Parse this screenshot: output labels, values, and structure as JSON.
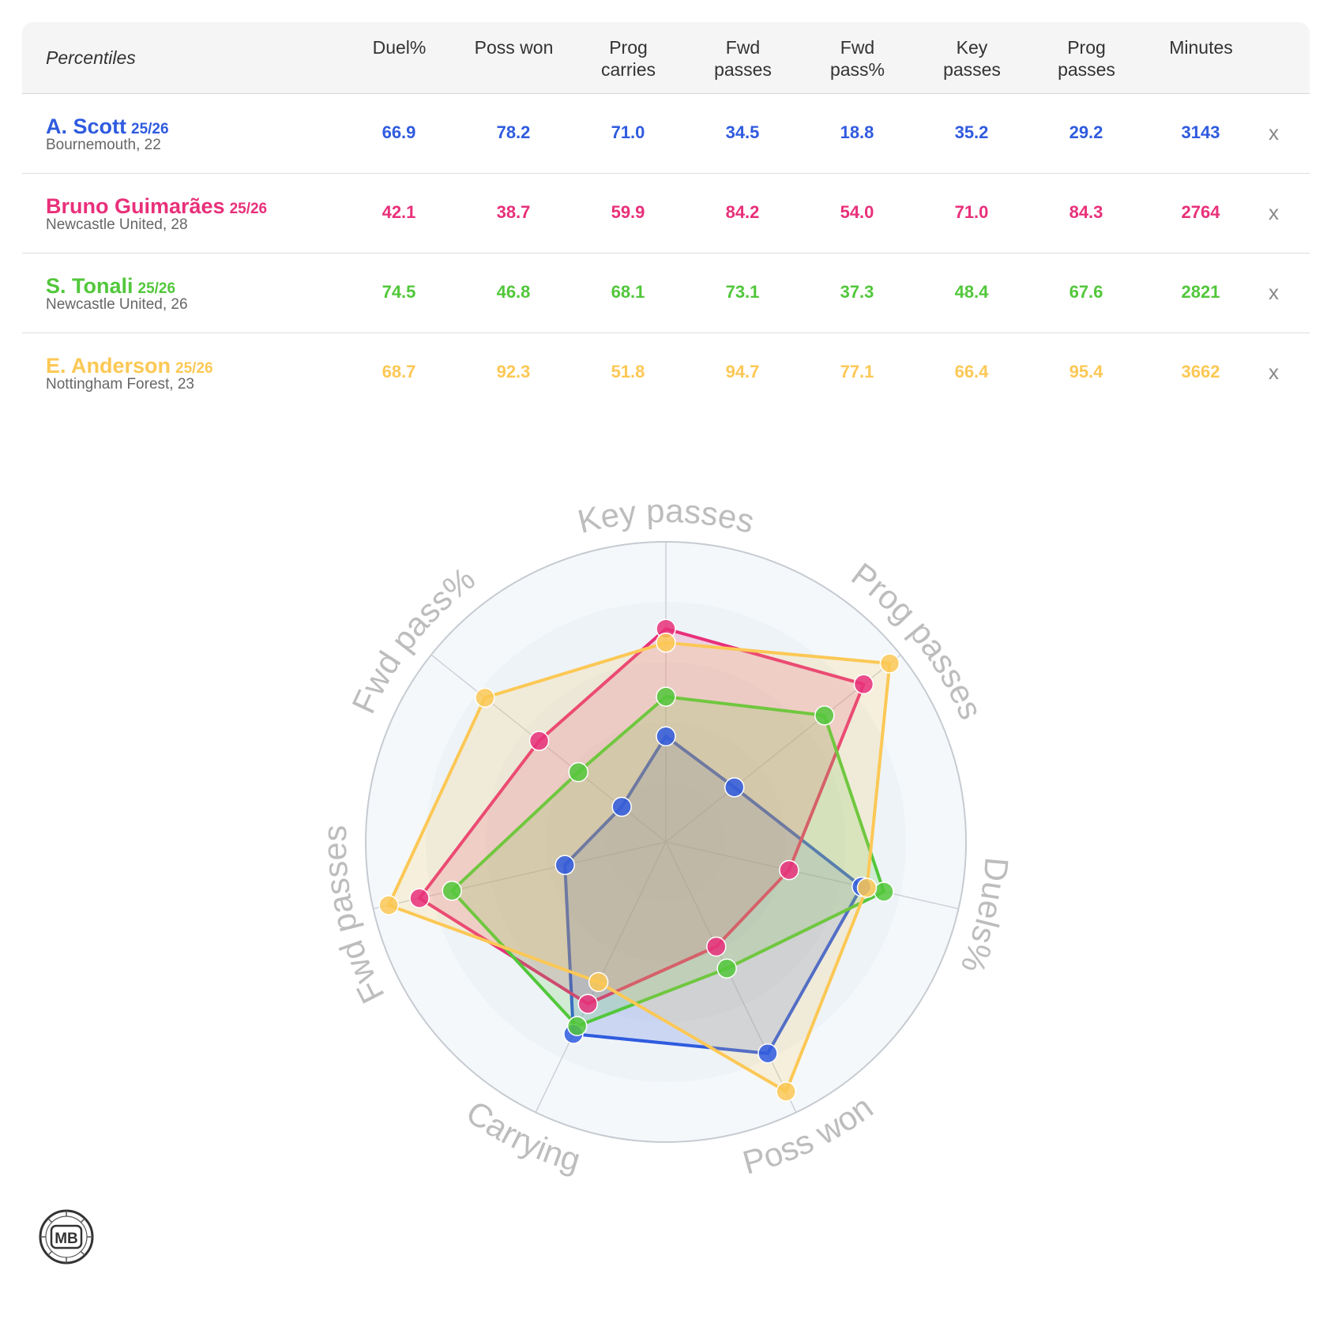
{
  "table": {
    "corner_label": "Percentiles",
    "columns": [
      {
        "line1": "Duel%",
        "line2": ""
      },
      {
        "line1": "Poss won",
        "line2": ""
      },
      {
        "line1": "Prog",
        "line2": "carries"
      },
      {
        "line1": "Fwd",
        "line2": "passes"
      },
      {
        "line1": "Fwd",
        "line2": "pass%"
      },
      {
        "line1": "Key",
        "line2": "passes"
      },
      {
        "line1": "Prog",
        "line2": "passes"
      },
      {
        "line1": "Minutes",
        "line2": ""
      }
    ],
    "remove_label": "x"
  },
  "players": [
    {
      "name": "A. Scott",
      "season": "25/26",
      "team_age": "Bournemouth, 22",
      "color": "#2f5bdf",
      "values": [
        "66.9",
        "78.2",
        "71.0",
        "34.5",
        "18.8",
        "35.2",
        "29.2",
        "3143"
      ]
    },
    {
      "name": "Bruno Guimarães",
      "season": "25/26",
      "team_age": "Newcastle United, 28",
      "color": "#e8307a",
      "values": [
        "42.1",
        "38.7",
        "59.9",
        "84.2",
        "54.0",
        "71.0",
        "84.3",
        "2764"
      ]
    },
    {
      "name": "S. Tonali",
      "season": "25/26",
      "team_age": "Newcastle United, 26",
      "color": "#52c73b",
      "values": [
        "74.5",
        "46.8",
        "68.1",
        "73.1",
        "37.3",
        "48.4",
        "67.6",
        "2821"
      ]
    },
    {
      "name": "E. Anderson",
      "season": "25/26",
      "team_age": "Nottingham Forest, 23",
      "color": "#fcc855",
      "values": [
        "68.7",
        "92.3",
        "51.8",
        "94.7",
        "77.1",
        "66.4",
        "95.4",
        "3662"
      ]
    }
  ],
  "chart_data": {
    "type": "radar",
    "axes": [
      "Key passes",
      "Prog passes",
      "Duels%",
      "Poss won",
      "Carrying",
      "Fwd passes",
      "Fwd pass%"
    ],
    "range": [
      0,
      100
    ],
    "series": [
      {
        "name": "A. Scott",
        "color": "#2f5bdf",
        "values": [
          35.2,
          29.2,
          66.9,
          78.2,
          71.0,
          34.5,
          18.8
        ]
      },
      {
        "name": "Bruno Guimarães",
        "color": "#e8307a",
        "values": [
          71.0,
          84.3,
          42.1,
          38.7,
          59.9,
          84.2,
          54.0
        ]
      },
      {
        "name": "S. Tonali",
        "color": "#52c73b",
        "values": [
          48.4,
          67.6,
          74.5,
          46.8,
          68.1,
          73.1,
          37.3
        ]
      },
      {
        "name": "E. Anderson",
        "color": "#fcc855",
        "values": [
          66.4,
          95.4,
          68.7,
          92.3,
          51.8,
          94.7,
          77.1
        ]
      }
    ]
  },
  "logo": {
    "text": "MB"
  }
}
